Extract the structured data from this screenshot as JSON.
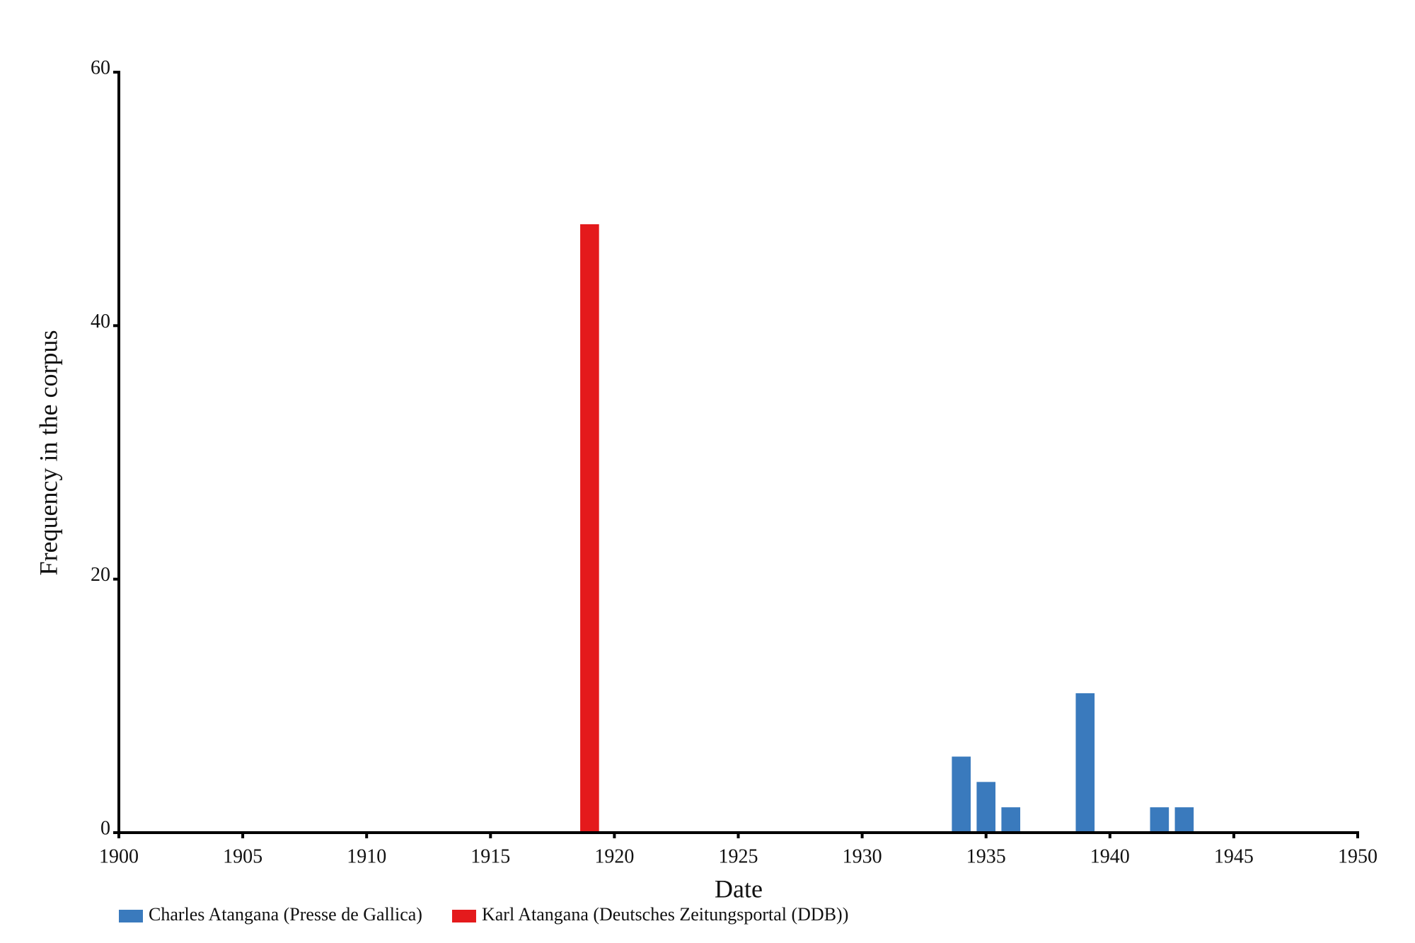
{
  "chart_data": {
    "type": "bar",
    "x_label": "Date",
    "y_label": "Frequency in the corpus",
    "x": [
      1919,
      1934,
      1935,
      1936,
      1939,
      1942,
      1943
    ],
    "series": [
      {
        "name": "Charles Atangana (Presse de Gallica)",
        "color": "#3a7abd",
        "values": [
          null,
          6,
          4,
          2,
          11,
          2,
          2
        ]
      },
      {
        "name": "Karl Atangana (Deutsches Zeitungsportal (DDB))",
        "color": "#e41a1c",
        "values": [
          48,
          null,
          null,
          null,
          null,
          null,
          null
        ]
      }
    ],
    "xlim": [
      1900,
      1950
    ],
    "xticks": [
      1900,
      1905,
      1910,
      1915,
      1920,
      1925,
      1930,
      1935,
      1940,
      1945,
      1950
    ],
    "ylim": [
      0,
      60
    ],
    "yticks": [
      0,
      20,
      40,
      60
    ],
    "grid": false,
    "legend": "bottom-left"
  }
}
